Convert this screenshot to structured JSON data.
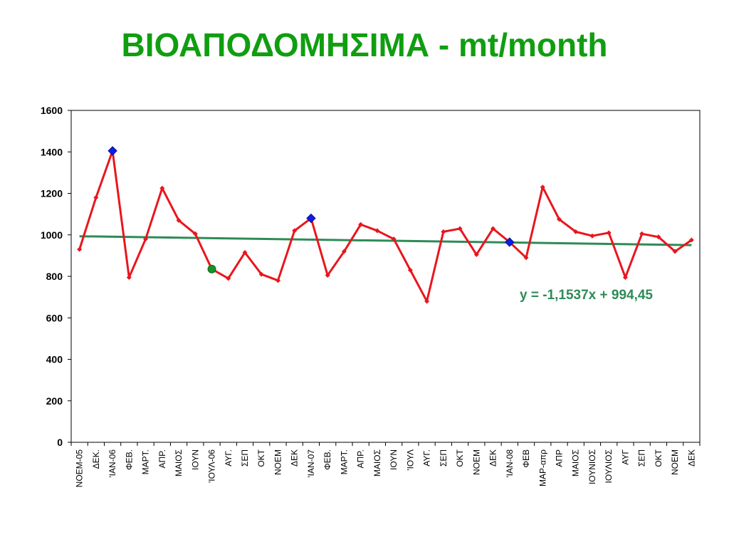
{
  "slide": {
    "title": "ΒΙΟΑΠΟΔΟΜΗΣΙΜΑ - mt/month"
  },
  "colors": {
    "title": "#109e10",
    "series_line": "#e8161e",
    "trendline": "#2e8b57",
    "highlight_blue": "#0a1ee6",
    "highlight_green": "#17912a",
    "axis": "#000000"
  },
  "chart_data": {
    "type": "line",
    "title": "",
    "xlabel": "",
    "ylabel": "",
    "ylim": [
      0,
      1600
    ],
    "yticks": [
      0,
      200,
      400,
      600,
      800,
      1000,
      1200,
      1400,
      1600
    ],
    "grid": false,
    "legend": "none",
    "categories": [
      "ΝΟΕΜ-05",
      "ΔΕΚ.",
      "'ΙΑΝ-06",
      "ΦΕΒ.",
      "ΜΑΡΤ.",
      "ΑΠΡ.",
      "ΜΑΙΟΣ",
      "ΙΟΥΝ",
      "'ΙΟΥΛ-06",
      "ΑΥΓ.",
      "ΣΕΠ",
      "ΟΚΤ",
      "ΝΟΕΜ",
      "ΔΕΚ",
      "'ΙΑΝ-07",
      "ΦΕΒ.",
      "ΜΑΡΤ.",
      "ΑΠΡ.",
      "ΜΑΙΟΣ",
      "ΙΟΥΝ",
      "'ΙΟΥΛ",
      "ΑΥΓ.",
      "ΣΕΠ",
      "ΟΚΤ",
      "ΝΟΕΜ",
      "ΔΕΚ",
      "'ΙΑΝ-08",
      "ΦΕΒ",
      "ΜΑΡ-απρ",
      "ΑΠΡ",
      "ΜΑΙΟΣ",
      "ΙΟΥΝΙΟΣ",
      "ΙΟΥΛΙΟΣ",
      "ΑΥΓ",
      "ΣΕΠ",
      "ΟΚΤ",
      "ΝΟΕΜ",
      "ΔΕΚ"
    ],
    "series": [
      {
        "values": [
          930,
          1180,
          1405,
          795,
          980,
          1225,
          1070,
          1005,
          835,
          790,
          915,
          810,
          780,
          1020,
          1080,
          805,
          920,
          1050,
          1020,
          980,
          830,
          680,
          1015,
          1030,
          905,
          1030,
          965,
          890,
          1230,
          1075,
          1015,
          995,
          1010,
          795,
          1005,
          990,
          920,
          975
        ]
      }
    ],
    "highlighted_points": [
      {
        "index": 2,
        "color": "blue"
      },
      {
        "index": 8,
        "color": "green"
      },
      {
        "index": 14,
        "color": "blue"
      },
      {
        "index": 26,
        "color": "blue"
      }
    ],
    "trendline": {
      "slope": -1.1537,
      "intercept": 994.45,
      "equation_label": "y = -1,1537x + 994,45"
    }
  }
}
